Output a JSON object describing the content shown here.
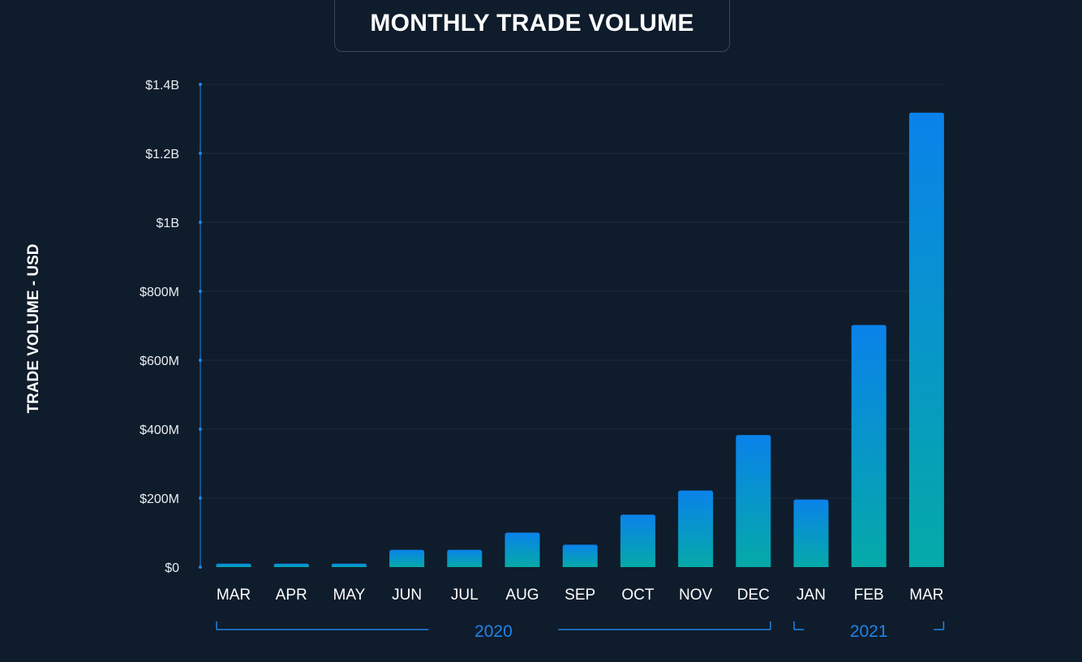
{
  "chart_data": {
    "type": "bar",
    "title": "MONTHLY TRADE VOLUME",
    "ylabel": "TRADE VOLUME - USD",
    "xlabel": "",
    "categories": [
      "MAR",
      "APR",
      "MAY",
      "JUN",
      "JUL",
      "AUG",
      "SEP",
      "OCT",
      "NOV",
      "DEC",
      "JAN",
      "FEB",
      "MAR"
    ],
    "values": [
      10,
      10,
      10,
      50,
      50,
      100,
      65,
      152,
      222,
      383,
      196,
      702,
      1318
    ],
    "value_unit": "M USD",
    "ylim": [
      0,
      1400
    ],
    "yticks": [
      0,
      200,
      400,
      600,
      800,
      1000,
      1200,
      1400
    ],
    "ytick_labels": [
      "$0",
      "$200M",
      "$400M",
      "$600M",
      "$800M",
      "$1B",
      "$1.2B",
      "$1.4B"
    ],
    "year_groups": [
      {
        "label": "2020",
        "start_index": 0,
        "end_index": 9
      },
      {
        "label": "2021",
        "start_index": 10,
        "end_index": 12
      }
    ],
    "grid": true
  },
  "colors": {
    "background": "#0f1c2b",
    "bar_top": "#0a82ea",
    "bar_bottom": "#05aaa8",
    "axis": "#1e84e8",
    "grid": "#1b2a3b",
    "year_label": "#1e84e8"
  }
}
